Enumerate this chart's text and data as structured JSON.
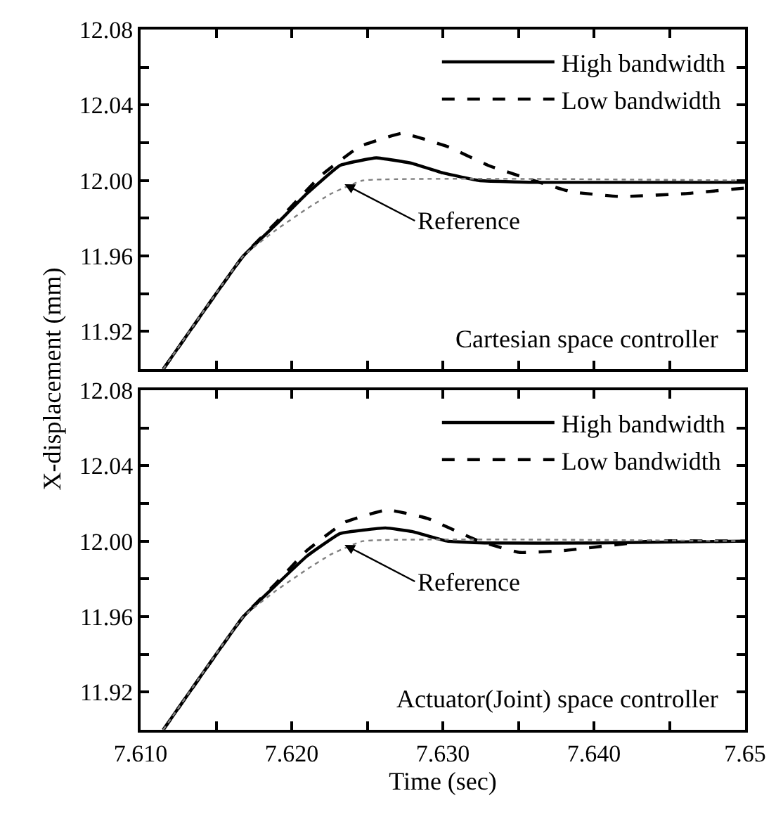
{
  "chart_data": [
    {
      "type": "line",
      "ylabel": "X-displacement (mm)",
      "tick_labels": "y",
      "legend": "top right",
      "xlim": [
        7.61,
        7.65
      ],
      "ylim": [
        11.9,
        12.08
      ],
      "xticks": [
        {
          "value": 7.61,
          "label": null
        },
        {
          "value": 7.615,
          "label": null
        },
        {
          "value": 7.62,
          "label": null
        },
        {
          "value": 7.625,
          "label": null
        },
        {
          "value": 7.63,
          "label": null
        },
        {
          "value": 7.635,
          "label": null
        },
        {
          "value": 7.64,
          "label": null
        },
        {
          "value": 7.645,
          "label": null
        },
        {
          "value": 7.65,
          "label": null
        }
      ],
      "yticks": [
        {
          "value": 11.92,
          "label": "11.92"
        },
        {
          "value": 11.94,
          "label": null
        },
        {
          "value": 11.96,
          "label": "11.96"
        },
        {
          "value": 11.98,
          "label": null
        },
        {
          "value": 12.0,
          "label": "12.00"
        },
        {
          "value": 12.02,
          "label": null
        },
        {
          "value": 12.04,
          "label": "12.04"
        },
        {
          "value": 12.06,
          "label": null
        },
        {
          "value": 12.08,
          "label": "12.08"
        }
      ],
      "series": [
        {
          "name": "High bandwidth",
          "color": "#000000",
          "line_style": "solid",
          "x": [
            7.6115,
            7.6168,
            7.619,
            7.621,
            7.6232,
            7.6256,
            7.628,
            7.63,
            7.6324,
            7.636,
            7.65
          ],
          "values": [
            11.9,
            11.96,
            11.977,
            11.993,
            12.008,
            12.012,
            12.009,
            12.004,
            12.0,
            11.999,
            11.999
          ]
        },
        {
          "name": "Low bandwidth",
          "color": "#000000",
          "line_style": "dashed",
          "x": [
            7.6115,
            7.6168,
            7.619,
            7.622,
            7.6245,
            7.6273,
            7.6303,
            7.633,
            7.636,
            7.6385,
            7.6417,
            7.646,
            7.65
          ],
          "values": [
            11.9,
            11.96,
            11.978,
            12.003,
            12.018,
            12.025,
            12.018,
            12.008,
            12.0,
            11.994,
            11.9915,
            11.993,
            11.996
          ]
        },
        {
          "color": "#808080",
          "line_style": "dotted",
          "x": [
            7.6115,
            7.6168,
            7.619,
            7.621,
            7.6226,
            7.6247,
            7.65
          ],
          "values": [
            11.9,
            11.96,
            11.974,
            11.985,
            11.993,
            12.0,
            12.0
          ]
        }
      ],
      "annotations": [
        {
          "text": "Reference",
          "x": 7.6235,
          "y": 11.998
        },
        "Cartesian space controller"
      ]
    },
    {
      "type": "line",
      "xlabel": "Time (sec)",
      "legend": "top right",
      "xlim": [
        7.61,
        7.65
      ],
      "ylim": [
        11.9,
        12.08
      ],
      "xticks": [
        {
          "value": 7.61,
          "label": "7.610"
        },
        {
          "value": 7.615,
          "label": null
        },
        {
          "value": 7.62,
          "label": "7.620"
        },
        {
          "value": 7.625,
          "label": null
        },
        {
          "value": 7.63,
          "label": "7.630"
        },
        {
          "value": 7.635,
          "label": null
        },
        {
          "value": 7.64,
          "label": "7.640"
        },
        {
          "value": 7.645,
          "label": null
        },
        {
          "value": 7.65,
          "label": "7.65"
        }
      ],
      "yticks": [
        {
          "value": 11.92,
          "label": "11.92"
        },
        {
          "value": 11.94,
          "label": null
        },
        {
          "value": 11.96,
          "label": "11.96"
        },
        {
          "value": 11.98,
          "label": null
        },
        {
          "value": 12.0,
          "label": "12.00"
        },
        {
          "value": 12.02,
          "label": null
        },
        {
          "value": 12.04,
          "label": "12.04"
        },
        {
          "value": 12.06,
          "label": null
        },
        {
          "value": 12.08,
          "label": "12.08"
        }
      ],
      "series": [
        {
          "name": "High bandwidth",
          "color": "#000000",
          "line_style": "solid",
          "x": [
            7.6115,
            7.6168,
            7.619,
            7.621,
            7.6232,
            7.6262,
            7.628,
            7.6303,
            7.633,
            7.64,
            7.65
          ],
          "values": [
            11.9,
            11.96,
            11.977,
            11.992,
            12.004,
            12.007,
            12.005,
            12.0,
            11.999,
            11.999,
            12.0
          ]
        },
        {
          "name": "Low bandwidth",
          "color": "#000000",
          "line_style": "dashed",
          "x": [
            7.6115,
            7.6168,
            7.619,
            7.621,
            7.6235,
            7.6263,
            7.629,
            7.6324,
            7.6351,
            7.638,
            7.6437,
            7.65
          ],
          "values": [
            11.9,
            11.96,
            11.978,
            11.995,
            12.01,
            12.0166,
            12.012,
            12.0,
            11.994,
            11.995,
            12.0,
            12.0
          ]
        },
        {
          "color": "#808080",
          "line_style": "dotted",
          "x": [
            7.6115,
            7.6168,
            7.619,
            7.621,
            7.6226,
            7.6247,
            7.65
          ],
          "values": [
            11.9,
            11.96,
            11.974,
            11.985,
            11.993,
            12.0,
            12.0
          ]
        }
      ],
      "annotations": [
        {
          "text": "Reference",
          "x": 7.6235,
          "y": 11.998
        },
        "Actuator(Joint) space controller"
      ]
    }
  ]
}
